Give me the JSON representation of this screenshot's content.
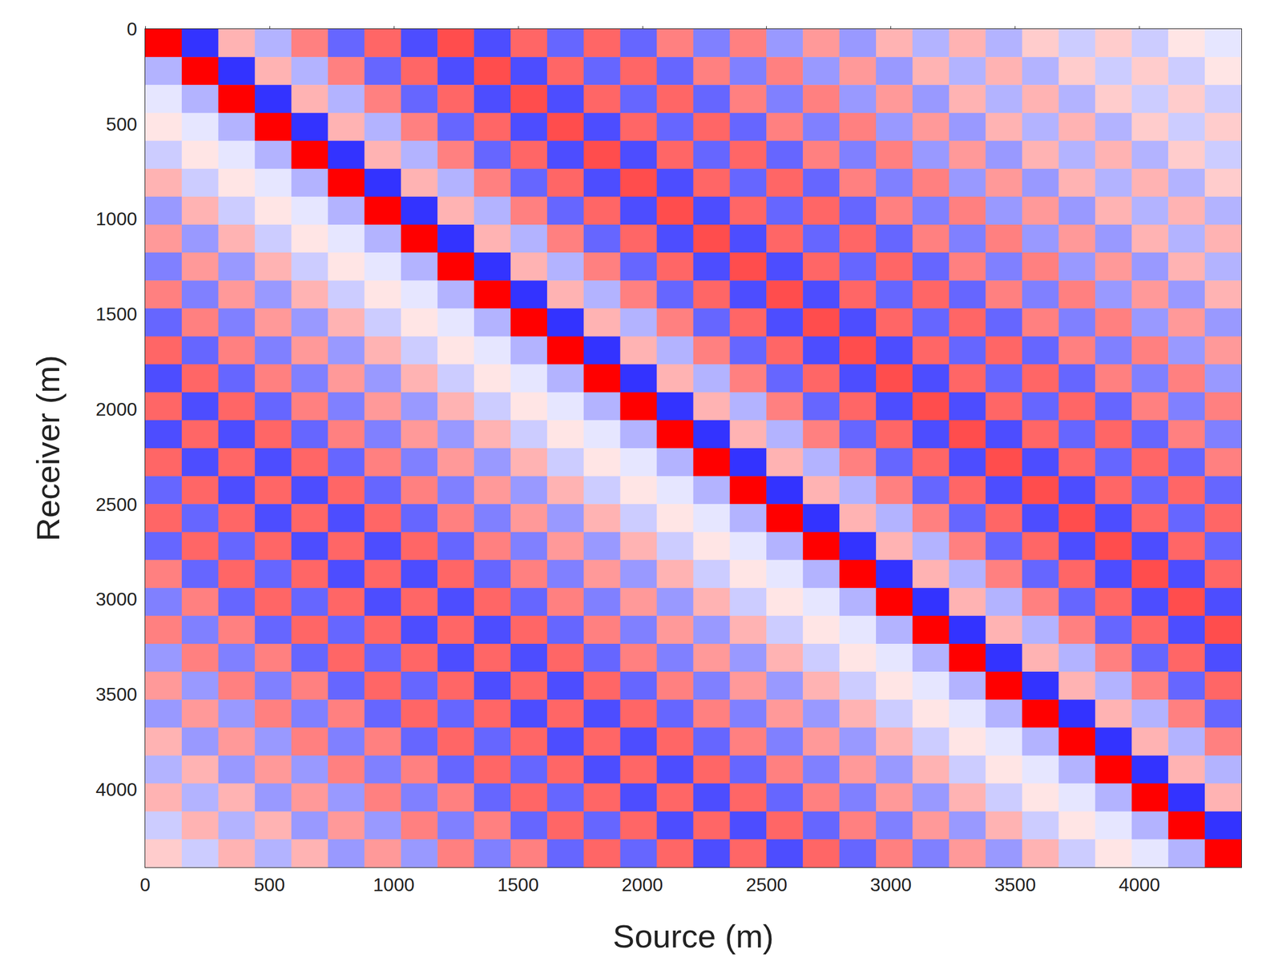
{
  "chart_data": {
    "type": "heatmap",
    "xlabel": "Source (m)",
    "ylabel": "Receiver (m)",
    "xlim": [
      0,
      4410
    ],
    "ylim": [
      0,
      4410
    ],
    "xticks": [
      0,
      500,
      1000,
      1500,
      2000,
      2500,
      3000,
      3500,
      4000
    ],
    "yticks": [
      0,
      500,
      1000,
      1500,
      2000,
      2500,
      3000,
      3500,
      4000
    ],
    "zlim": [
      -1,
      1
    ],
    "x": [
      73.5,
      220.5,
      367.5,
      514.5,
      661.5,
      808.5,
      955.5,
      1102.5,
      1249.5,
      1396.5,
      1543.5,
      1690.5,
      1837.5,
      1984.5,
      2131.5,
      2278.5,
      2425.5,
      2572.5,
      2719.5,
      2866.5,
      3013.5,
      3160.5,
      3307.5,
      3454.5,
      3601.5,
      3748.5,
      3895.5,
      4042.5,
      4189.5,
      4336.5
    ],
    "y": [
      73.5,
      220.5,
      367.5,
      514.5,
      661.5,
      808.5,
      955.5,
      1102.5,
      1249.5,
      1396.5,
      1543.5,
      1690.5,
      1837.5,
      1984.5,
      2131.5,
      2278.5,
      2425.5,
      2572.5,
      2719.5,
      2866.5,
      3013.5,
      3160.5,
      3307.5,
      3454.5,
      3601.5,
      3748.5,
      3895.5,
      4042.5,
      4189.5,
      4336.5
    ],
    "z": [
      [
        1,
        -0.8,
        0.3,
        -0.3,
        0.5,
        -0.6,
        0.6,
        -0.7,
        0.7,
        -0.7,
        0.6,
        -0.6,
        0.6,
        -0.6,
        0.5,
        -0.5,
        0.5,
        -0.4,
        0.4,
        -0.4,
        0.3,
        -0.3,
        0.3,
        -0.3,
        0.2,
        -0.2,
        0.2,
        -0.2,
        0.1,
        -0.1
      ],
      [
        -0.3,
        1,
        -0.8,
        0.3,
        -0.3,
        0.5,
        -0.6,
        0.6,
        -0.7,
        0.7,
        -0.7,
        0.6,
        -0.6,
        0.6,
        -0.6,
        0.5,
        -0.5,
        0.5,
        -0.4,
        0.4,
        -0.4,
        0.3,
        -0.3,
        0.3,
        -0.3,
        0.2,
        -0.2,
        0.2,
        -0.2,
        0.1
      ],
      [
        -0.1,
        -0.3,
        1,
        -0.8,
        0.3,
        -0.3,
        0.5,
        -0.6,
        0.6,
        -0.7,
        0.7,
        -0.7,
        0.6,
        -0.6,
        0.6,
        -0.6,
        0.5,
        -0.5,
        0.5,
        -0.4,
        0.4,
        -0.4,
        0.3,
        -0.3,
        0.3,
        -0.3,
        0.2,
        -0.2,
        0.2,
        -0.2
      ],
      [
        0.1,
        -0.1,
        -0.3,
        1,
        -0.8,
        0.3,
        -0.3,
        0.5,
        -0.6,
        0.6,
        -0.7,
        0.7,
        -0.7,
        0.6,
        -0.6,
        0.6,
        -0.6,
        0.5,
        -0.5,
        0.5,
        -0.4,
        0.4,
        -0.4,
        0.3,
        -0.3,
        0.3,
        -0.3,
        0.2,
        -0.2,
        0.2
      ],
      [
        -0.2,
        0.1,
        -0.1,
        -0.3,
        1,
        -0.8,
        0.3,
        -0.3,
        0.5,
        -0.6,
        0.6,
        -0.7,
        0.7,
        -0.7,
        0.6,
        -0.6,
        0.6,
        -0.6,
        0.5,
        -0.5,
        0.5,
        -0.4,
        0.4,
        -0.4,
        0.3,
        -0.3,
        0.3,
        -0.3,
        0.2,
        -0.2
      ],
      [
        0.3,
        -0.2,
        0.1,
        -0.1,
        -0.3,
        1,
        -0.8,
        0.3,
        -0.3,
        0.5,
        -0.6,
        0.6,
        -0.7,
        0.7,
        -0.7,
        0.6,
        -0.6,
        0.6,
        -0.6,
        0.5,
        -0.5,
        0.5,
        -0.4,
        0.4,
        -0.4,
        0.3,
        -0.3,
        0.3,
        -0.3,
        0.2
      ],
      [
        -0.4,
        0.3,
        -0.2,
        0.1,
        -0.1,
        -0.3,
        1,
        -0.8,
        0.3,
        -0.3,
        0.5,
        -0.6,
        0.6,
        -0.7,
        0.7,
        -0.7,
        0.6,
        -0.6,
        0.6,
        -0.6,
        0.5,
        -0.5,
        0.5,
        -0.4,
        0.4,
        -0.4,
        0.3,
        -0.3,
        0.3,
        -0.3
      ],
      [
        0.4,
        -0.4,
        0.3,
        -0.2,
        0.1,
        -0.1,
        -0.3,
        1,
        -0.8,
        0.3,
        -0.3,
        0.5,
        -0.6,
        0.6,
        -0.7,
        0.7,
        -0.7,
        0.6,
        -0.6,
        0.6,
        -0.6,
        0.5,
        -0.5,
        0.5,
        -0.4,
        0.4,
        -0.4,
        0.3,
        -0.3,
        0.3
      ],
      [
        -0.5,
        0.4,
        -0.4,
        0.3,
        -0.2,
        0.1,
        -0.1,
        -0.3,
        1,
        -0.8,
        0.3,
        -0.3,
        0.5,
        -0.6,
        0.6,
        -0.7,
        0.7,
        -0.7,
        0.6,
        -0.6,
        0.6,
        -0.6,
        0.5,
        -0.5,
        0.5,
        -0.4,
        0.4,
        -0.4,
        0.3,
        -0.3
      ],
      [
        0.5,
        -0.5,
        0.4,
        -0.4,
        0.3,
        -0.2,
        0.1,
        -0.1,
        -0.3,
        1,
        -0.8,
        0.3,
        -0.3,
        0.5,
        -0.6,
        0.6,
        -0.7,
        0.7,
        -0.7,
        0.6,
        -0.6,
        0.6,
        -0.6,
        0.5,
        -0.5,
        0.5,
        -0.4,
        0.4,
        -0.4,
        0.3
      ],
      [
        -0.6,
        0.5,
        -0.5,
        0.4,
        -0.4,
        0.3,
        -0.2,
        0.1,
        -0.1,
        -0.3,
        1,
        -0.8,
        0.3,
        -0.3,
        0.5,
        -0.6,
        0.6,
        -0.7,
        0.7,
        -0.7,
        0.6,
        -0.6,
        0.6,
        -0.6,
        0.5,
        -0.5,
        0.5,
        -0.4,
        0.4,
        -0.4
      ],
      [
        0.6,
        -0.6,
        0.5,
        -0.5,
        0.4,
        -0.4,
        0.3,
        -0.2,
        0.1,
        -0.1,
        -0.3,
        1,
        -0.8,
        0.3,
        -0.3,
        0.5,
        -0.6,
        0.6,
        -0.7,
        0.7,
        -0.7,
        0.6,
        -0.6,
        0.6,
        -0.6,
        0.5,
        -0.5,
        0.5,
        -0.4,
        0.4
      ],
      [
        -0.7,
        0.6,
        -0.6,
        0.5,
        -0.5,
        0.4,
        -0.4,
        0.3,
        -0.2,
        0.1,
        -0.1,
        -0.3,
        1,
        -0.8,
        0.3,
        -0.3,
        0.5,
        -0.6,
        0.6,
        -0.7,
        0.7,
        -0.7,
        0.6,
        -0.6,
        0.6,
        -0.6,
        0.5,
        -0.5,
        0.5,
        -0.4
      ],
      [
        0.6,
        -0.7,
        0.6,
        -0.6,
        0.5,
        -0.5,
        0.4,
        -0.4,
        0.3,
        -0.2,
        0.1,
        -0.1,
        -0.3,
        1,
        -0.8,
        0.3,
        -0.3,
        0.5,
        -0.6,
        0.6,
        -0.7,
        0.7,
        -0.7,
        0.6,
        -0.6,
        0.6,
        -0.6,
        0.5,
        -0.5,
        0.5
      ],
      [
        -0.7,
        0.6,
        -0.7,
        0.6,
        -0.6,
        0.5,
        -0.5,
        0.4,
        -0.4,
        0.3,
        -0.2,
        0.1,
        -0.1,
        -0.3,
        1,
        -0.8,
        0.3,
        -0.3,
        0.5,
        -0.6,
        0.6,
        -0.7,
        0.7,
        -0.7,
        0.6,
        -0.6,
        0.6,
        -0.6,
        0.5,
        -0.5
      ],
      [
        0.6,
        -0.7,
        0.6,
        -0.7,
        0.6,
        -0.6,
        0.5,
        -0.5,
        0.4,
        -0.4,
        0.3,
        -0.2,
        0.1,
        -0.1,
        -0.3,
        1,
        -0.8,
        0.3,
        -0.3,
        0.5,
        -0.6,
        0.6,
        -0.7,
        0.7,
        -0.7,
        0.6,
        -0.6,
        0.6,
        -0.6,
        0.5
      ],
      [
        -0.6,
        0.6,
        -0.7,
        0.6,
        -0.7,
        0.6,
        -0.6,
        0.5,
        -0.5,
        0.4,
        -0.4,
        0.3,
        -0.2,
        0.1,
        -0.1,
        -0.3,
        1,
        -0.8,
        0.3,
        -0.3,
        0.5,
        -0.6,
        0.6,
        -0.7,
        0.7,
        -0.7,
        0.6,
        -0.6,
        0.6,
        -0.6
      ],
      [
        0.6,
        -0.6,
        0.6,
        -0.7,
        0.6,
        -0.7,
        0.6,
        -0.6,
        0.5,
        -0.5,
        0.4,
        -0.4,
        0.3,
        -0.2,
        0.1,
        -0.1,
        -0.3,
        1,
        -0.8,
        0.3,
        -0.3,
        0.5,
        -0.6,
        0.6,
        -0.7,
        0.7,
        -0.7,
        0.6,
        -0.6,
        0.6
      ],
      [
        -0.6,
        0.6,
        -0.6,
        0.6,
        -0.7,
        0.6,
        -0.7,
        0.6,
        -0.6,
        0.5,
        -0.5,
        0.4,
        -0.4,
        0.3,
        -0.2,
        0.1,
        -0.1,
        -0.3,
        1,
        -0.8,
        0.3,
        -0.3,
        0.5,
        -0.6,
        0.6,
        -0.7,
        0.7,
        -0.7,
        0.6,
        -0.6
      ],
      [
        0.5,
        -0.6,
        0.6,
        -0.6,
        0.6,
        -0.7,
        0.6,
        -0.7,
        0.6,
        -0.6,
        0.5,
        -0.5,
        0.4,
        -0.4,
        0.3,
        -0.2,
        0.1,
        -0.1,
        -0.3,
        1,
        -0.8,
        0.3,
        -0.3,
        0.5,
        -0.6,
        0.6,
        -0.7,
        0.7,
        -0.7,
        0.6
      ],
      [
        -0.5,
        0.5,
        -0.6,
        0.6,
        -0.6,
        0.6,
        -0.7,
        0.6,
        -0.7,
        0.6,
        -0.6,
        0.5,
        -0.5,
        0.4,
        -0.4,
        0.3,
        -0.2,
        0.1,
        -0.1,
        -0.3,
        1,
        -0.8,
        0.3,
        -0.3,
        0.5,
        -0.6,
        0.6,
        -0.7,
        0.7,
        -0.7
      ],
      [
        0.5,
        -0.5,
        0.5,
        -0.6,
        0.6,
        -0.6,
        0.6,
        -0.7,
        0.6,
        -0.7,
        0.6,
        -0.6,
        0.5,
        -0.5,
        0.4,
        -0.4,
        0.3,
        -0.2,
        0.1,
        -0.1,
        -0.3,
        1,
        -0.8,
        0.3,
        -0.3,
        0.5,
        -0.6,
        0.6,
        -0.7,
        0.7
      ],
      [
        -0.4,
        0.5,
        -0.5,
        0.5,
        -0.6,
        0.6,
        -0.6,
        0.6,
        -0.7,
        0.6,
        -0.7,
        0.6,
        -0.6,
        0.5,
        -0.5,
        0.4,
        -0.4,
        0.3,
        -0.2,
        0.1,
        -0.1,
        -0.3,
        1,
        -0.8,
        0.3,
        -0.3,
        0.5,
        -0.6,
        0.6,
        -0.7
      ],
      [
        0.4,
        -0.4,
        0.5,
        -0.5,
        0.5,
        -0.6,
        0.6,
        -0.6,
        0.6,
        -0.7,
        0.6,
        -0.7,
        0.6,
        -0.6,
        0.5,
        -0.5,
        0.4,
        -0.4,
        0.3,
        -0.2,
        0.1,
        -0.1,
        -0.3,
        1,
        -0.8,
        0.3,
        -0.3,
        0.5,
        -0.6,
        0.6
      ],
      [
        -0.4,
        0.4,
        -0.4,
        0.5,
        -0.5,
        0.5,
        -0.6,
        0.6,
        -0.6,
        0.6,
        -0.7,
        0.6,
        -0.7,
        0.6,
        -0.6,
        0.5,
        -0.5,
        0.4,
        -0.4,
        0.3,
        -0.2,
        0.1,
        -0.1,
        -0.3,
        1,
        -0.8,
        0.3,
        -0.3,
        0.5,
        -0.6
      ],
      [
        0.3,
        -0.4,
        0.4,
        -0.4,
        0.5,
        -0.5,
        0.5,
        -0.6,
        0.6,
        -0.6,
        0.6,
        -0.7,
        0.6,
        -0.7,
        0.6,
        -0.6,
        0.5,
        -0.5,
        0.4,
        -0.4,
        0.3,
        -0.2,
        0.1,
        -0.1,
        -0.3,
        1,
        -0.8,
        0.3,
        -0.3,
        0.5
      ],
      [
        -0.3,
        0.3,
        -0.4,
        0.4,
        -0.4,
        0.5,
        -0.5,
        0.5,
        -0.6,
        0.6,
        -0.6,
        0.6,
        -0.7,
        0.6,
        -0.7,
        0.6,
        -0.6,
        0.5,
        -0.5,
        0.4,
        -0.4,
        0.3,
        -0.2,
        0.1,
        -0.1,
        -0.3,
        1,
        -0.8,
        0.3,
        -0.3
      ],
      [
        0.3,
        -0.3,
        0.3,
        -0.4,
        0.4,
        -0.4,
        0.5,
        -0.5,
        0.5,
        -0.6,
        0.6,
        -0.6,
        0.6,
        -0.7,
        0.6,
        -0.7,
        0.6,
        -0.6,
        0.5,
        -0.5,
        0.4,
        -0.4,
        0.3,
        -0.2,
        0.1,
        -0.1,
        -0.3,
        1,
        -0.8,
        0.3
      ],
      [
        -0.2,
        0.3,
        -0.3,
        0.3,
        -0.4,
        0.4,
        -0.4,
        0.5,
        -0.5,
        0.5,
        -0.6,
        0.6,
        -0.6,
        0.6,
        -0.7,
        0.6,
        -0.7,
        0.6,
        -0.6,
        0.5,
        -0.5,
        0.4,
        -0.4,
        0.3,
        -0.2,
        0.1,
        -0.1,
        -0.3,
        1,
        -0.8
      ],
      [
        0.2,
        -0.2,
        0.3,
        -0.3,
        0.3,
        -0.4,
        0.4,
        -0.4,
        0.5,
        -0.5,
        0.5,
        -0.6,
        0.6,
        -0.6,
        0.6,
        -0.7,
        0.6,
        -0.7,
        0.6,
        -0.6,
        0.5,
        -0.5,
        0.4,
        -0.4,
        0.3,
        -0.2,
        0.1,
        -0.1,
        -0.3,
        1
      ]
    ]
  }
}
